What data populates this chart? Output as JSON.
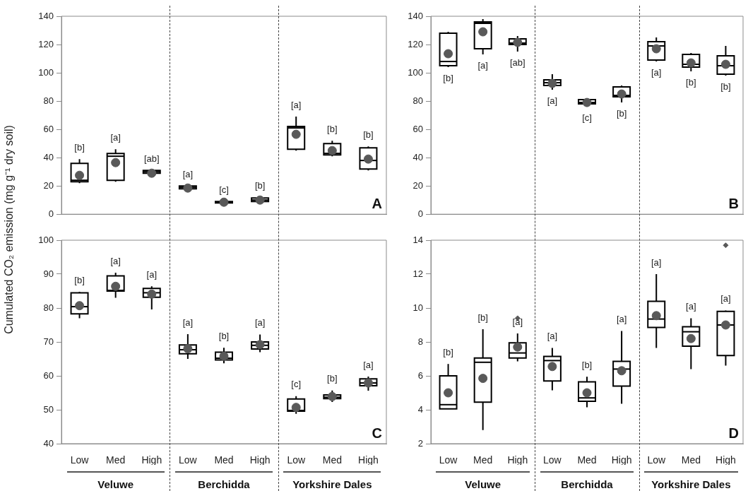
{
  "chart_data": [
    {
      "type": "box",
      "ylabel": "Cumulated CO₂ emission (mg g⁻¹ dry soil)",
      "categories": [
        null,
        null,
        null,
        null,
        null,
        null,
        null,
        null,
        null
      ],
      "tick_labels": "y",
      "ylim": [
        0,
        140
      ],
      "yticks": [
        0,
        20,
        40,
        60,
        80,
        100,
        120,
        140
      ],
      "boxes": [
        {
          "low": 22,
          "q1": 23,
          "median": 24,
          "q3": 36,
          "high": 39,
          "mean": 27.5
        },
        {
          "low": 23,
          "q1": 24,
          "median": 41,
          "q3": 43,
          "high": 46,
          "mean": 36.5
        },
        {
          "low": 28,
          "q1": 29,
          "median": 30,
          "q3": 31,
          "high": 31,
          "mean": 29
        },
        {
          "low": 17.5,
          "q1": 18,
          "median": 19,
          "q3": 20,
          "high": 20,
          "mean": 18.5
        },
        {
          "low": 8,
          "q1": 8,
          "median": 8.5,
          "q3": 9,
          "high": 9,
          "mean": 8.5
        },
        {
          "low": 9,
          "q1": 9,
          "median": 10,
          "q3": 11.5,
          "high": 12,
          "mean": 10
        },
        {
          "low": 45,
          "q1": 46,
          "median": 61,
          "q3": 62,
          "high": 69,
          "mean": 56.5
        },
        {
          "low": 41,
          "q1": 42,
          "median": 43,
          "q3": 50,
          "high": 52,
          "mean": 45
        },
        {
          "low": 31,
          "q1": 32,
          "median": 38,
          "q3": 47,
          "high": 48,
          "mean": 39
        }
      ],
      "annotations": [
        "[b]",
        "[a]",
        "[ab]",
        "[a]",
        "[c]",
        "[b]",
        "[a]",
        "[b]",
        "[b]",
        "A"
      ]
    },
    {
      "type": "box",
      "categories": [
        null,
        null,
        null,
        null,
        null,
        null,
        null,
        null,
        null
      ],
      "tick_labels": "y",
      "ylim": [
        0,
        140
      ],
      "yticks": [
        0,
        20,
        40,
        60,
        80,
        100,
        120,
        140
      ],
      "boxes": [
        {
          "low": 104,
          "q1": 105,
          "median": 108,
          "q3": 128,
          "high": 129,
          "mean": 113.5
        },
        {
          "low": 113,
          "q1": 117,
          "median": 135,
          "q3": 136,
          "high": 138,
          "mean": 129
        },
        {
          "low": 115,
          "q1": 120,
          "median": 121,
          "q3": 124,
          "high": 126,
          "mean": 121.5
        },
        {
          "low": 88,
          "q1": 91,
          "median": 93,
          "q3": 95,
          "high": 99,
          "mean": 92.5
        },
        {
          "low": 76,
          "q1": 78,
          "median": 79,
          "q3": 81,
          "high": 82,
          "mean": 79
        },
        {
          "low": 79,
          "q1": 83,
          "median": 84,
          "q3": 90,
          "high": 91,
          "mean": 85
        },
        {
          "low": 108,
          "q1": 109,
          "median": 119,
          "q3": 122,
          "high": 125,
          "mean": 117
        },
        {
          "low": 101,
          "q1": 104,
          "median": 106,
          "q3": 113,
          "high": 114,
          "mean": 107
        },
        {
          "low": 98,
          "q1": 99,
          "median": 105,
          "q3": 112,
          "high": 119,
          "mean": 106
        }
      ],
      "annotations": [
        "[b]",
        "[a]",
        "[ab]",
        "[a]",
        "[c]",
        "[b]",
        "[a]",
        "[b]",
        "[b]",
        "B"
      ]
    },
    {
      "type": "box",
      "categories": [
        "Low",
        "Med",
        "High",
        "Low",
        "Med",
        "High",
        "Low",
        "Med",
        "High"
      ],
      "ylim": [
        40,
        100
      ],
      "yticks": [
        40,
        50,
        60,
        70,
        80,
        90,
        100
      ],
      "boxes": [
        {
          "low": 77,
          "q1": 78.3,
          "median": 80.4,
          "q3": 84.5,
          "high": 84.8,
          "mean": 80.7
        },
        {
          "low": 83,
          "q1": 85,
          "median": 85.2,
          "q3": 89.5,
          "high": 90.4,
          "mean": 86.4
        },
        {
          "low": 79.6,
          "q1": 83.2,
          "median": 84.5,
          "q3": 85.8,
          "high": 86.4,
          "mean": 84.1
        },
        {
          "low": 65,
          "q1": 66.5,
          "median": 67.7,
          "q3": 69.1,
          "high": 72.3,
          "mean": 68
        },
        {
          "low": 63.7,
          "q1": 64.7,
          "median": 65.2,
          "q3": 67,
          "high": 68.3,
          "mean": 65.8
        },
        {
          "low": 67,
          "q1": 67.9,
          "median": 69,
          "q3": 70,
          "high": 72.2,
          "mean": 69.2
        },
        {
          "low": 48.8,
          "q1": 49.6,
          "median": 49.8,
          "q3": 53.2,
          "high": 54,
          "mean": 50.7
        },
        {
          "low": 52.3,
          "q1": 53.3,
          "median": 53.7,
          "q3": 54.4,
          "high": 55.7,
          "mean": 53.9
        },
        {
          "low": 55.6,
          "q1": 57.1,
          "median": 57.9,
          "q3": 59.1,
          "high": 59.8,
          "mean": 57.9
        }
      ],
      "annotations": [
        "[b]",
        "[a]",
        "[a]",
        "[a]",
        "[b]",
        "[a]",
        "[c]",
        "[b]",
        "[a]",
        "C",
        "Veluwe",
        "Berchidda",
        "Yorkshire Dales"
      ]
    },
    {
      "type": "box",
      "categories": [
        "Low",
        "Med",
        "High",
        "Low",
        "Med",
        "High",
        "Low",
        "Med",
        "High"
      ],
      "ylim": [
        2,
        14
      ],
      "yticks": [
        2,
        4,
        6,
        8,
        10,
        12,
        14
      ],
      "boxes": [
        {
          "low": 4.05,
          "q1": 4.05,
          "median": 4.3,
          "q3": 6,
          "high": 6.7,
          "mean": 5
        },
        {
          "low": 2.8,
          "q1": 4.45,
          "median": 6.8,
          "q3": 7.05,
          "high": 8.75,
          "mean": 5.85
        },
        {
          "low": 6.85,
          "q1": 7.05,
          "median": 7.35,
          "q3": 7.95,
          "high": 8.5,
          "mean": 7.7,
          "outliers": [
            9.4
          ]
        },
        {
          "low": 5.15,
          "q1": 5.7,
          "median": 6.9,
          "q3": 7.15,
          "high": 7.65,
          "mean": 6.55
        },
        {
          "low": 4.15,
          "q1": 4.5,
          "median": 4.7,
          "q3": 5.65,
          "high": 5.95,
          "mean": 5
        },
        {
          "low": 4.35,
          "q1": 5.4,
          "median": 6.4,
          "q3": 6.85,
          "high": 8.65,
          "mean": 6.3
        },
        {
          "low": 7.65,
          "q1": 8.85,
          "median": 9.35,
          "q3": 10.4,
          "high": 12,
          "mean": 9.55
        },
        {
          "low": 6.4,
          "q1": 7.75,
          "median": 8.6,
          "q3": 8.9,
          "high": 9.4,
          "mean": 8.2
        },
        {
          "low": 6.6,
          "q1": 7.2,
          "median": 9,
          "q3": 9.8,
          "high": 9.85,
          "mean": 9,
          "outliers": [
            13.7
          ]
        }
      ],
      "annotations": [
        "[b]",
        "[b]",
        "[a]",
        "[a]",
        "[b]",
        "[a]",
        "[a]",
        "[a]",
        "[a]",
        "D",
        "Veluwe",
        "Berchidda",
        "Yorkshire Dales"
      ]
    }
  ]
}
